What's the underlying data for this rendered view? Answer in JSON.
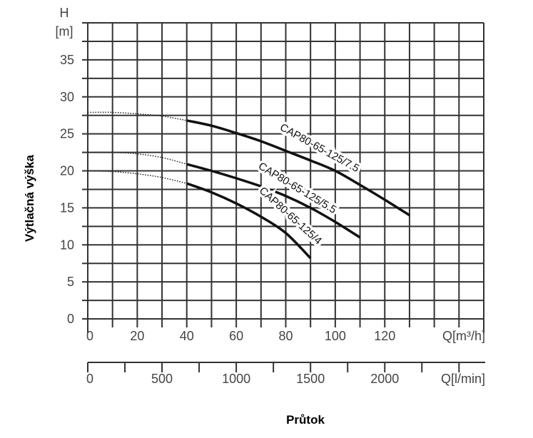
{
  "chart_data": {
    "type": "line",
    "ylabel": "Výtlačná výška",
    "xlabel": "Průtok",
    "y_unit_top": "H",
    "y_unit_bottom": "[m]",
    "x_unit_primary": "Q[m³/h]",
    "x_unit_secondary": "Q[l/min]",
    "xlim": [
      0,
      160
    ],
    "ylim": [
      0,
      40
    ],
    "grid": true,
    "x_ticks": [
      "0",
      "20",
      "40",
      "60",
      "80",
      "100",
      "120"
    ],
    "y_ticks": [
      "0",
      "5",
      "10",
      "15",
      "20",
      "25",
      "30",
      "35"
    ],
    "secondary_x_ticks": [
      "0",
      "500",
      "1000",
      "1500",
      "2000"
    ],
    "series": [
      {
        "name": "CAP80-65-125/7.5",
        "dotted": [
          [
            0,
            27.9
          ],
          [
            10,
            27.9
          ],
          [
            20,
            27.7
          ],
          [
            30,
            27.4
          ],
          [
            40,
            26.8
          ]
        ],
        "solid": [
          [
            40,
            26.8
          ],
          [
            50,
            26.1
          ],
          [
            60,
            25.1
          ],
          [
            70,
            24.0
          ],
          [
            80,
            22.7
          ],
          [
            90,
            21.4
          ],
          [
            100,
            20.0
          ],
          [
            110,
            18.1
          ],
          [
            120,
            16.1
          ],
          [
            130,
            14.0
          ]
        ]
      },
      {
        "name": "CAP80-65-125/5.5",
        "dotted": [
          [
            0,
            22.5
          ],
          [
            10,
            22.5
          ],
          [
            20,
            22.3
          ],
          [
            30,
            21.8
          ],
          [
            40,
            20.9
          ]
        ],
        "solid": [
          [
            40,
            20.9
          ],
          [
            50,
            20.0
          ],
          [
            60,
            19.0
          ],
          [
            70,
            17.9
          ],
          [
            80,
            16.6
          ],
          [
            90,
            15.0
          ],
          [
            100,
            13.1
          ],
          [
            110,
            11.0
          ]
        ]
      },
      {
        "name": "CAP80-65-125/4",
        "dotted": [
          [
            0,
            20.0
          ],
          [
            10,
            19.9
          ],
          [
            20,
            19.6
          ],
          [
            30,
            19.1
          ],
          [
            40,
            18.3
          ]
        ],
        "solid": [
          [
            40,
            18.3
          ],
          [
            50,
            17.1
          ],
          [
            60,
            15.6
          ],
          [
            70,
            13.8
          ],
          [
            80,
            11.6
          ],
          [
            90,
            8.2
          ]
        ]
      }
    ]
  }
}
